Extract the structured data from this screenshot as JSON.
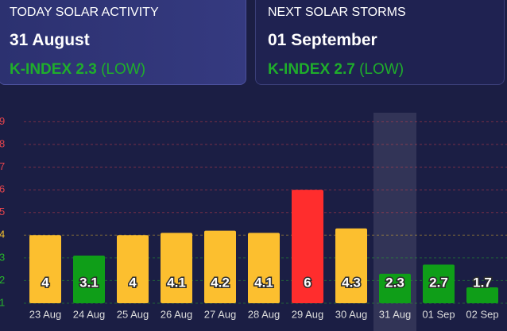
{
  "cards": [
    {
      "label": "TODAY SOLAR ACTIVITY",
      "date": "31 August",
      "k_index": "K-INDEX 2.3",
      "level": "(LOW)"
    },
    {
      "label": "NEXT SOLAR STORMS",
      "date": "01 September",
      "k_index": "K-INDEX 2.7",
      "level": "(LOW)"
    }
  ],
  "chart_data": {
    "type": "bar",
    "categories": [
      "23 Aug",
      "24 Aug",
      "25 Aug",
      "26 Aug",
      "27 Aug",
      "28 Aug",
      "29 Aug",
      "30 Aug",
      "31 Aug",
      "01 Sep",
      "02 Sep"
    ],
    "values": [
      4,
      3.1,
      4,
      4.1,
      4.2,
      4.1,
      6,
      4.3,
      2.3,
      2.7,
      1.7
    ],
    "colors": [
      "#fcbf2f",
      "#0f9e18",
      "#fcbf2f",
      "#fcbf2f",
      "#fcbf2f",
      "#fcbf2f",
      "#ff2d2d",
      "#fcbf2f",
      "#0f9e18",
      "#0f9e18",
      "#0f9e18"
    ],
    "ylim": [
      1,
      9.4
    ],
    "yticks": [
      1,
      2,
      3,
      4,
      5,
      6,
      7,
      8,
      9
    ],
    "ytick_colors": [
      "#27b52b",
      "#27b52b",
      "#27b52b",
      "#f5c12e",
      "#e5444c",
      "#e5444c",
      "#e5444c",
      "#e5444c",
      "#e5444c"
    ],
    "grid": true,
    "highlight_index": 8
  }
}
